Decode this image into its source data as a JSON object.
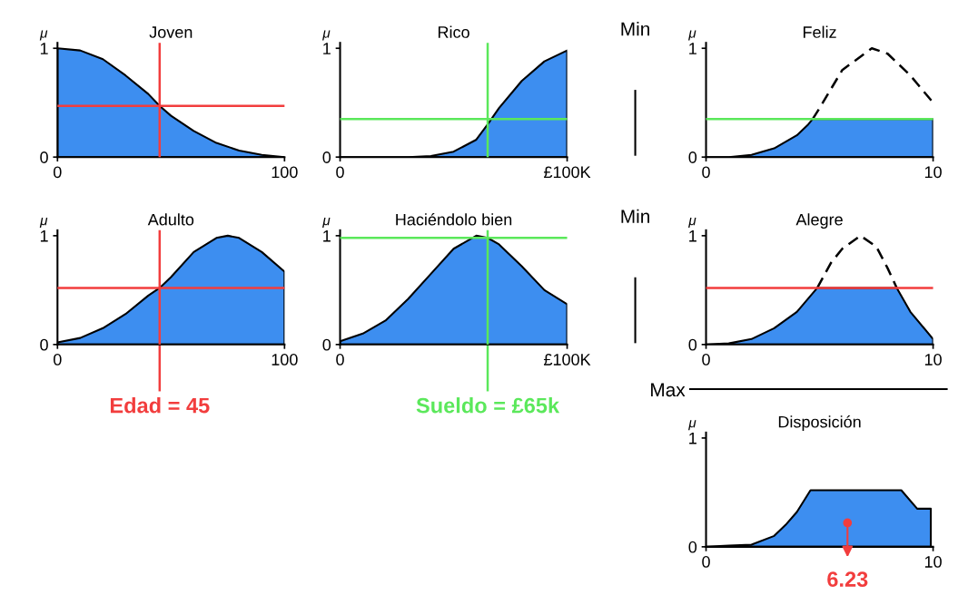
{
  "chart_data": [
    {
      "type": "area",
      "title": "Joven",
      "ylabel": "μ",
      "xlim": [
        0,
        100
      ],
      "ylim": [
        0,
        1.05
      ],
      "xticks": [
        0,
        100
      ],
      "yticks": [
        0,
        1
      ],
      "x": [
        0,
        10,
        20,
        30,
        40,
        45,
        50,
        60,
        70,
        80,
        90,
        100
      ],
      "series": [
        {
          "color": "#3d8ef0",
          "values": [
            1,
            0.98,
            0.9,
            0.75,
            0.58,
            0.47,
            0.38,
            0.24,
            0.13,
            0.06,
            0.02,
            0
          ]
        }
      ],
      "ref_lines": [
        {
          "axis": "x",
          "value": 45,
          "color": "#f23d3d"
        },
        {
          "axis": "y",
          "value": 0.47,
          "color": "#f23d3d"
        }
      ]
    },
    {
      "type": "area",
      "title": "Rico",
      "ylabel": "μ",
      "xlim": [
        0,
        100
      ],
      "ylim": [
        0,
        1.05
      ],
      "xticks": [
        0,
        {
          "value": 100,
          "label": "£100K"
        }
      ],
      "yticks": [
        0,
        1
      ],
      "x": [
        0,
        30,
        40,
        50,
        60,
        65,
        70,
        80,
        90,
        100
      ],
      "series": [
        {
          "color": "#3d8ef0",
          "values": [
            0,
            0,
            0.01,
            0.05,
            0.16,
            0.3,
            0.45,
            0.7,
            0.88,
            0.98
          ]
        }
      ],
      "ref_lines": [
        {
          "axis": "x",
          "value": 65,
          "color": "#5be85b"
        },
        {
          "axis": "y",
          "value": 0.35,
          "color": "#5be85b"
        }
      ],
      "annotations": [
        "Min"
      ]
    },
    {
      "type": "area",
      "title": "Feliz",
      "ylabel": "μ",
      "xlim": [
        0,
        10
      ],
      "ylim": [
        0,
        1.05
      ],
      "xticks": [
        0,
        10
      ],
      "yticks": [
        0,
        1
      ],
      "x": [
        0,
        1,
        2,
        3,
        4,
        4.5,
        4.7,
        10
      ],
      "series": [
        {
          "color": "#3d8ef0",
          "values": [
            0,
            0,
            0.02,
            0.08,
            0.2,
            0.3,
            0.35,
            0.35
          ]
        },
        {
          "type": "line",
          "line_style": "dashed",
          "color": "#000000",
          "x": [
            4.7,
            5,
            6,
            7.3,
            8,
            9,
            10
          ],
          "values": [
            0.35,
            0.45,
            0.8,
            1,
            0.95,
            0.75,
            0.5
          ]
        }
      ],
      "ref_lines": [
        {
          "axis": "y",
          "value": 0.35,
          "color": "#5be85b"
        }
      ]
    },
    {
      "type": "area",
      "title": "Adulto",
      "ylabel": "μ",
      "xlim": [
        0,
        100
      ],
      "ylim": [
        0,
        1.05
      ],
      "xticks": [
        0,
        100
      ],
      "yticks": [
        0,
        1
      ],
      "x": [
        0,
        10,
        20,
        30,
        40,
        45,
        50,
        60,
        70,
        75,
        80,
        90,
        100
      ],
      "series": [
        {
          "color": "#3d8ef0",
          "values": [
            0.02,
            0.06,
            0.15,
            0.28,
            0.45,
            0.52,
            0.62,
            0.85,
            0.98,
            1,
            0.98,
            0.85,
            0.67
          ]
        }
      ],
      "ref_lines": [
        {
          "axis": "x",
          "value": 45,
          "color": "#f23d3d"
        },
        {
          "axis": "y",
          "value": 0.52,
          "color": "#f23d3d"
        }
      ],
      "annotations": [
        {
          "text": "Edad = 45",
          "x": 45
        }
      ]
    },
    {
      "type": "area",
      "title": "Haciéndolo bien",
      "ylabel": "μ",
      "xlim": [
        0,
        100
      ],
      "ylim": [
        0,
        1.05
      ],
      "xticks": [
        0,
        {
          "value": 100,
          "label": "£100K"
        }
      ],
      "yticks": [
        0,
        1
      ],
      "x": [
        0,
        10,
        20,
        30,
        40,
        50,
        60,
        65,
        70,
        80,
        90,
        100
      ],
      "series": [
        {
          "color": "#3d8ef0",
          "values": [
            0.03,
            0.1,
            0.22,
            0.42,
            0.65,
            0.88,
            1,
            0.98,
            0.92,
            0.72,
            0.5,
            0.37
          ]
        }
      ],
      "ref_lines": [
        {
          "axis": "x",
          "value": 65,
          "color": "#5be85b"
        },
        {
          "axis": "y",
          "value": 0.98,
          "color": "#5be85b"
        }
      ],
      "annotations": [
        "Min",
        {
          "text": "Sueldo = £65k",
          "x": 65
        }
      ]
    },
    {
      "type": "area",
      "title": "Alegre",
      "ylabel": "μ",
      "xlim": [
        0,
        10
      ],
      "ylim": [
        0,
        1.05
      ],
      "xticks": [
        0,
        10
      ],
      "yticks": [
        0,
        1
      ],
      "x": [
        0,
        1,
        2,
        3,
        4,
        4.9,
        8.4,
        9,
        10
      ],
      "series": [
        {
          "color": "#3d8ef0",
          "values": [
            0,
            0.01,
            0.05,
            0.15,
            0.3,
            0.52,
            0.52,
            0.3,
            0.05
          ]
        },
        {
          "type": "line",
          "line_style": "dashed",
          "color": "#000000",
          "x": [
            4.9,
            5.5,
            6,
            6.8,
            7.5,
            8,
            8.4
          ],
          "values": [
            0.52,
            0.75,
            0.88,
            1,
            0.9,
            0.7,
            0.52
          ]
        }
      ],
      "ref_lines": [
        {
          "axis": "y",
          "value": 0.52,
          "color": "#f23d3d"
        }
      ]
    },
    {
      "type": "area",
      "title": "Disposición",
      "ylabel": "μ",
      "xlim": [
        0,
        10
      ],
      "ylim": [
        0,
        1.05
      ],
      "xticks": [
        0,
        10
      ],
      "yticks": [
        0,
        1
      ],
      "x": [
        0,
        1,
        2,
        3,
        3.5,
        4,
        4.6,
        8.6,
        9.3,
        9.9
      ],
      "series": [
        {
          "color": "#3d8ef0",
          "values": [
            0,
            0.01,
            0.02,
            0.1,
            0.2,
            0.32,
            0.52,
            0.52,
            0.35,
            0.35
          ]
        }
      ],
      "annotations": [
        "Max",
        {
          "text": "6.23",
          "x": 6.23,
          "y": 0.22
        }
      ]
    }
  ]
}
